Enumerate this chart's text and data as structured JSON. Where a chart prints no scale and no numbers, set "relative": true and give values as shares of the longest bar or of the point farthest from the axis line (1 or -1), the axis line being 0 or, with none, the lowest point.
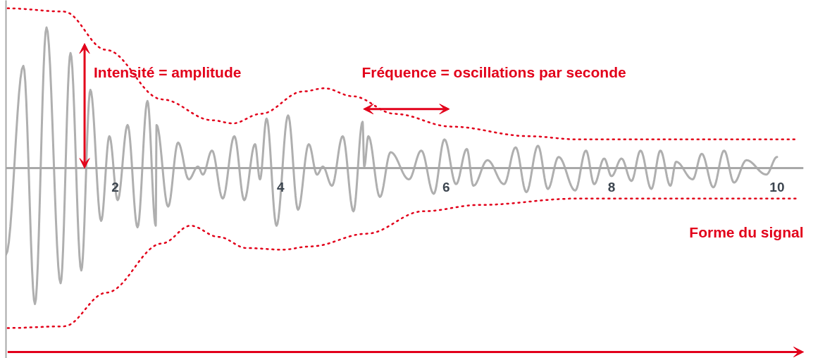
{
  "chart_data": {
    "type": "line",
    "relative": true,
    "xlim": [
      0.68,
      10.32
    ],
    "xticks": [
      2,
      4,
      6,
      8,
      10
    ],
    "grid": false,
    "marker": "none",
    "annotations": [
      "Intensité = amplitude",
      "Fréquence = oscillations par seconde",
      "Forme du signal"
    ],
    "series": [
      {
        "color": "#a6a6a6",
        "line_style": "solid",
        "x": [
          0.68,
          0.89,
          1.03,
          1.17,
          1.34,
          1.46,
          1.59,
          1.7,
          1.83,
          1.93,
          2.03,
          2.15,
          2.27,
          2.39,
          2.49,
          2.5,
          2.64,
          2.76,
          2.89,
          3.0,
          3.06,
          3.17,
          3.3,
          3.44,
          3.56,
          3.69,
          3.75,
          3.83,
          3.95,
          4.09,
          4.21,
          4.34,
          4.44,
          4.51,
          4.62,
          4.75,
          4.88,
          4.99,
          5.01,
          5.06,
          5.2,
          5.33,
          5.55,
          5.7,
          5.85,
          5.98,
          6.12,
          6.25,
          6.33,
          6.5,
          6.7,
          6.84,
          6.97,
          7.11,
          7.23,
          7.36,
          7.56,
          7.69,
          7.79,
          7.91,
          8.0,
          8.12,
          8.24,
          8.35,
          8.48,
          8.59,
          8.71,
          8.78,
          8.98,
          9.09,
          9.23,
          9.36,
          9.48,
          9.63,
          9.87,
          10.0
        ],
        "values": [
          -0.54,
          0.64,
          -0.85,
          0.88,
          -0.72,
          0.72,
          -0.64,
          0.49,
          -0.33,
          0.2,
          -0.2,
          0.27,
          -0.37,
          0.42,
          -0.36,
          0.27,
          -0.24,
          0.16,
          -0.07,
          0.01,
          -0.04,
          0.11,
          -0.19,
          0.2,
          -0.2,
          0.15,
          -0.07,
          0.31,
          -0.36,
          0.33,
          -0.26,
          0.15,
          -0.04,
          0.01,
          -0.11,
          0.2,
          -0.27,
          0.29,
          0.01,
          0.2,
          -0.18,
          0.1,
          -0.07,
          0.11,
          -0.16,
          0.18,
          -0.1,
          0.12,
          -0.11,
          0.05,
          -0.1,
          0.13,
          -0.15,
          0.14,
          -0.13,
          0.07,
          -0.14,
          0.11,
          -0.1,
          0.06,
          -0.05,
          0.06,
          -0.08,
          0.11,
          -0.13,
          0.11,
          -0.11,
          0.04,
          -0.07,
          0.09,
          -0.12,
          0.11,
          -0.09,
          0.05,
          -0.04,
          0.07
        ]
      },
      {
        "color": "#e2001a",
        "line_style": "dotted",
        "x": [
          0.7,
          1.38,
          1.89,
          2.57,
          3.17,
          3.42,
          3.76,
          4.27,
          4.53,
          4.87,
          5.38,
          6.06,
          7.0,
          7.59,
          10.23
        ],
        "values": [
          1.0,
          0.98,
          0.74,
          0.43,
          0.3,
          0.28,
          0.34,
          0.48,
          0.5,
          0.45,
          0.34,
          0.26,
          0.2,
          0.18,
          0.18
        ]
      },
      {
        "color": "#e2001a",
        "line_style": "dotted",
        "x": [
          0.7,
          1.38,
          1.89,
          2.57,
          2.91,
          3.25,
          3.59,
          4.02,
          4.36,
          5.04,
          5.72,
          6.4,
          7.59,
          10.23
        ],
        "values": [
          -1.0,
          -0.99,
          -0.78,
          -0.47,
          -0.36,
          -0.43,
          -0.5,
          -0.51,
          -0.49,
          -0.41,
          -0.27,
          -0.23,
          -0.19,
          -0.19
        ]
      }
    ]
  }
}
